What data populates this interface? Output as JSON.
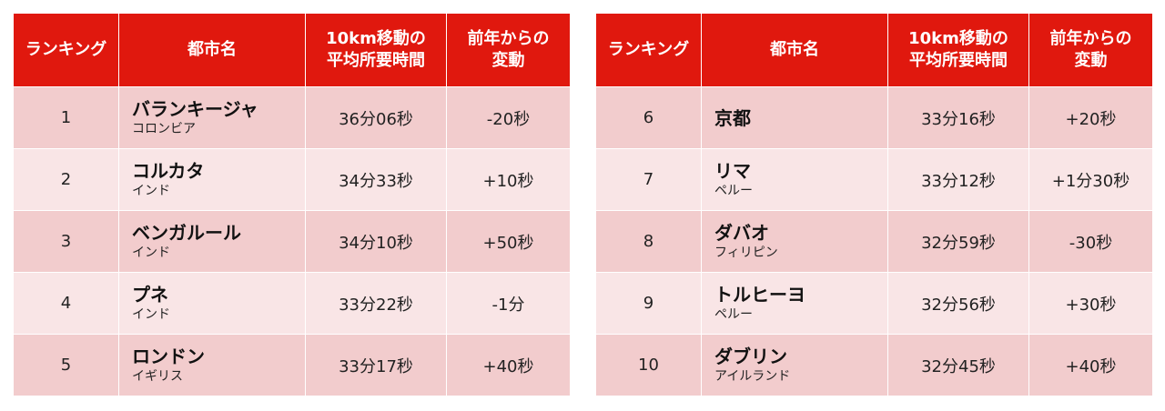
{
  "headers": {
    "rank": "ランキング",
    "city": "都市名",
    "time_line1": "10km移動の",
    "time_line2": "平均所要時間",
    "change_line1": "前年からの",
    "change_line2": "変動"
  },
  "left": [
    {
      "rank": "1",
      "city": "バランキージャ",
      "country": "コロンビア",
      "time": "36分06秒",
      "change": "-20秒"
    },
    {
      "rank": "2",
      "city": "コルカタ",
      "country": "インド",
      "time": "34分33秒",
      "change": "+10秒"
    },
    {
      "rank": "3",
      "city": "ベンガルール",
      "country": "インド",
      "time": "34分10秒",
      "change": "+50秒"
    },
    {
      "rank": "4",
      "city": "プネ",
      "country": "インド",
      "time": "33分22秒",
      "change": "-1分"
    },
    {
      "rank": "5",
      "city": "ロンドン",
      "country": "イギリス",
      "time": "33分17秒",
      "change": "+40秒"
    }
  ],
  "right": [
    {
      "rank": "6",
      "city": "京都",
      "country": "",
      "time": "33分16秒",
      "change": "+20秒"
    },
    {
      "rank": "7",
      "city": "リマ",
      "country": "ペルー",
      "time": "33分12秒",
      "change": "+1分30秒"
    },
    {
      "rank": "8",
      "city": "ダバオ",
      "country": "フィリピン",
      "time": "32分59秒",
      "change": "-30秒"
    },
    {
      "rank": "9",
      "city": "トルヒーヨ",
      "country": "ペルー",
      "time": "32分56秒",
      "change": "+30秒"
    },
    {
      "rank": "10",
      "city": "ダブリン",
      "country": "アイルランド",
      "time": "32分45秒",
      "change": "+40秒"
    }
  ]
}
